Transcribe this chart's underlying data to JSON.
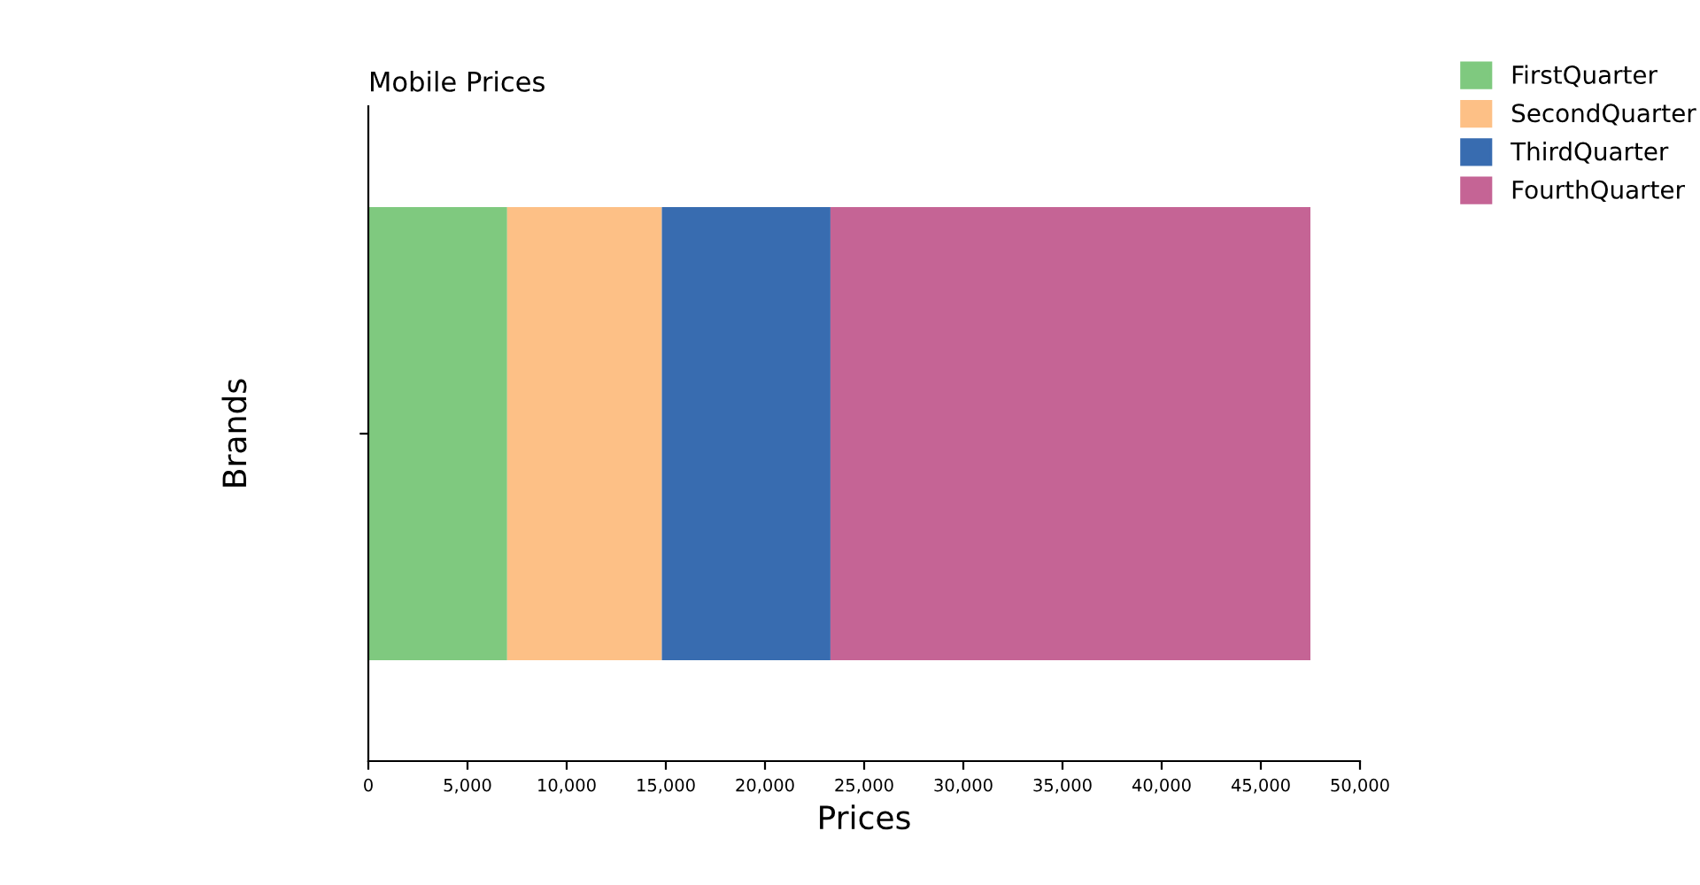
{
  "chart_data": {
    "type": "bar",
    "orientation": "horizontal",
    "stacked": true,
    "title": "Mobile Prices",
    "xlabel": "Prices",
    "ylabel": "Brands",
    "categories": [
      null
    ],
    "series": [
      {
        "name": "FirstQuarter",
        "color": "#7fc97f",
        "values": [
          7000
        ]
      },
      {
        "name": "SecondQuarter",
        "color": "#fdc086",
        "values": [
          7800
        ]
      },
      {
        "name": "ThirdQuarter",
        "color": "#386cb0",
        "values": [
          8500
        ]
      },
      {
        "name": "FourthQuarter",
        "color": "#c56495",
        "values": [
          24200
        ]
      }
    ],
    "xlim": [
      0,
      50000
    ],
    "xticks": [
      0,
      {
        "value": 5000,
        "label": "5,000"
      },
      {
        "value": 10000,
        "label": "10,000"
      },
      {
        "value": 15000,
        "label": "15,000"
      },
      {
        "value": 20000,
        "label": "20,000"
      },
      {
        "value": 25000,
        "label": "25,000"
      },
      {
        "value": 30000,
        "label": "30,000"
      },
      {
        "value": 35000,
        "label": "35,000"
      },
      {
        "value": 40000,
        "label": "40,000"
      },
      {
        "value": 45000,
        "label": "45,000"
      },
      {
        "value": 50000,
        "label": "50,000"
      }
    ],
    "legend": "top right",
    "grid": false
  }
}
